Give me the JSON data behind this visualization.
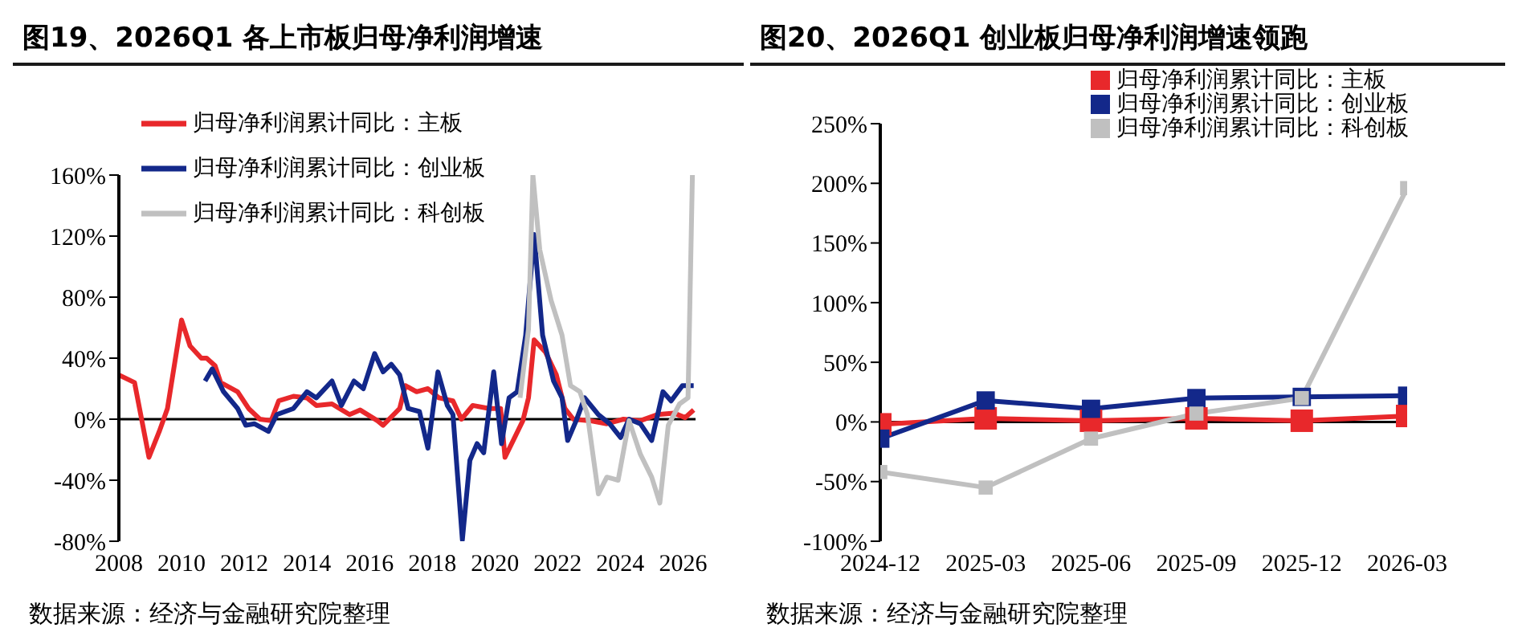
{
  "chart_data": [
    {
      "type": "line",
      "title": "图19、2026Q1 各上市板归母净利润增速",
      "legend": "top",
      "marker": "none",
      "grid": false,
      "xlim": [
        2008,
        2026.4
      ],
      "xticks": [
        2008,
        2010,
        2012,
        2014,
        2016,
        2018,
        2020,
        2022,
        2024,
        2026
      ],
      "ylim": [
        -80,
        160
      ],
      "yticks": [
        {
          "value": -80,
          "label": "-80%"
        },
        {
          "value": -40,
          "label": "-40%"
        },
        {
          "value": 0,
          "label": "0%"
        },
        {
          "value": 40,
          "label": "40%"
        },
        {
          "value": 80,
          "label": "80%"
        },
        {
          "value": 120,
          "label": "120%"
        },
        {
          "value": 160,
          "label": "160%"
        }
      ],
      "ref_lines": [
        {
          "axis": "y",
          "value": 0,
          "color": "#000000"
        }
      ],
      "annotations": [
        "数据来源：经济与金融研究院整理"
      ],
      "series": [
        {
          "name": "归母净利润累计同比：主板",
          "color": "#e8282b",
          "x": [
            2008.0,
            2008.5,
            2008.96,
            2009.29,
            2009.55,
            2010.0,
            2010.27,
            2010.63,
            2010.8,
            2011.07,
            2011.25,
            2011.79,
            2012.14,
            2012.5,
            2012.86,
            2013.1,
            2013.57,
            2014.0,
            2014.3,
            2014.8,
            2015.36,
            2015.7,
            2016.25,
            2016.43,
            2016.96,
            2017.14,
            2017.5,
            2017.86,
            2018.21,
            2018.66,
            2018.93,
            2019.29,
            2019.82,
            2020.18,
            2020.32,
            2020.89,
            2021.07,
            2021.25,
            2021.61,
            2021.96,
            2022.23,
            2022.5,
            2023.03,
            2023.57,
            2024.1,
            2024.64,
            2025.18,
            2025.71,
            2026.07,
            2026.34
          ],
          "values": [
            29,
            24,
            -25,
            -8,
            7,
            65,
            48,
            40,
            40,
            35,
            24,
            18,
            7,
            0,
            -1,
            12,
            15,
            14,
            9,
            10,
            3,
            6,
            -1,
            -4,
            7,
            22,
            18,
            20,
            14,
            12,
            0,
            9,
            7,
            7,
            -25,
            -1,
            14,
            52,
            44,
            29,
            7,
            0,
            -1,
            -3,
            0,
            -1,
            3,
            4,
            1,
            6
          ]
        },
        {
          "name": "归母净利润累计同比：创业板",
          "color": "#13288a",
          "x": [
            2010.75,
            2010.98,
            2011.34,
            2011.79,
            2012.05,
            2012.32,
            2012.77,
            2013.04,
            2013.57,
            2014.0,
            2014.3,
            2014.8,
            2015.1,
            2015.5,
            2015.8,
            2016.16,
            2016.43,
            2016.69,
            2016.96,
            2017.23,
            2017.59,
            2017.86,
            2018.18,
            2018.48,
            2018.66,
            2018.96,
            2019.2,
            2019.43,
            2019.64,
            2019.96,
            2020.21,
            2020.45,
            2020.71,
            2020.98,
            2021.25,
            2021.52,
            2021.87,
            2022.14,
            2022.32,
            2022.59,
            2022.86,
            2023.3,
            2023.66,
            2024.01,
            2024.28,
            2024.64,
            2025.0,
            2025.36,
            2025.62,
            2025.98,
            2026.34
          ],
          "values": [
            25,
            33,
            18,
            7,
            -4,
            -3,
            -8,
            3,
            7,
            18,
            14,
            25,
            9,
            25,
            20,
            43,
            31,
            36,
            29,
            7,
            5,
            -19,
            31,
            9,
            3,
            -79,
            -27,
            -16,
            -22,
            31,
            -16,
            14,
            18,
            55,
            121,
            55,
            25,
            14,
            -14,
            -1,
            14,
            3,
            -3,
            -12,
            0,
            -3,
            -14,
            18,
            12,
            22,
            22
          ]
        },
        {
          "name": "归母净利润累计同比：科创板",
          "color": "#c0c0c0",
          "x": [
            2020.8,
            2021.07,
            2021.21,
            2021.43,
            2021.79,
            2022.14,
            2022.41,
            2022.71,
            2022.95,
            2023.3,
            2023.57,
            2023.93,
            2024.28,
            2024.64,
            2025.0,
            2025.26,
            2025.53,
            2025.89,
            2026.16,
            2026.3
          ],
          "values": [
            14,
            59,
            160,
            111,
            78,
            55,
            22,
            18,
            3,
            -49,
            -38,
            -40,
            -1,
            -23,
            -38,
            -55,
            -4,
            10,
            14,
            160
          ]
        }
      ]
    },
    {
      "type": "line",
      "title": "图20、2026Q1 创业板归母净利润增速领跑",
      "legend": "top right",
      "marker": "square",
      "grid": false,
      "categories": [
        "2024-12",
        "2025-03",
        "2025-06",
        "2025-09",
        "2025-12",
        "2026-03"
      ],
      "ylim": [
        -100,
        250
      ],
      "yticks": [
        {
          "value": -100,
          "label": "-100%"
        },
        {
          "value": -50,
          "label": "-50%"
        },
        {
          "value": 0,
          "label": "0%"
        },
        {
          "value": 50,
          "label": "50%"
        },
        {
          "value": 100,
          "label": "100%"
        },
        {
          "value": 150,
          "label": "150%"
        },
        {
          "value": 200,
          "label": "200%"
        },
        {
          "value": 250,
          "label": "250%"
        }
      ],
      "ref_lines": [
        {
          "axis": "y",
          "value": 0,
          "color": "#000000"
        }
      ],
      "annotations": [
        "数据来源：经济与金融研究院整理"
      ],
      "series": [
        {
          "name": "归母净利润累计同比：主板",
          "color": "#e8282b",
          "values": [
            -2,
            3,
            1,
            3,
            1,
            5
          ]
        },
        {
          "name": "归母净利润累计同比：创业板",
          "color": "#13288a",
          "values": [
            -14,
            18,
            11,
            20,
            21,
            22
          ]
        },
        {
          "name": "归母净利润累计同比：科创板",
          "color": "#c0c0c0",
          "values": [
            -42,
            -55,
            -14,
            7,
            20,
            196
          ]
        }
      ]
    }
  ]
}
